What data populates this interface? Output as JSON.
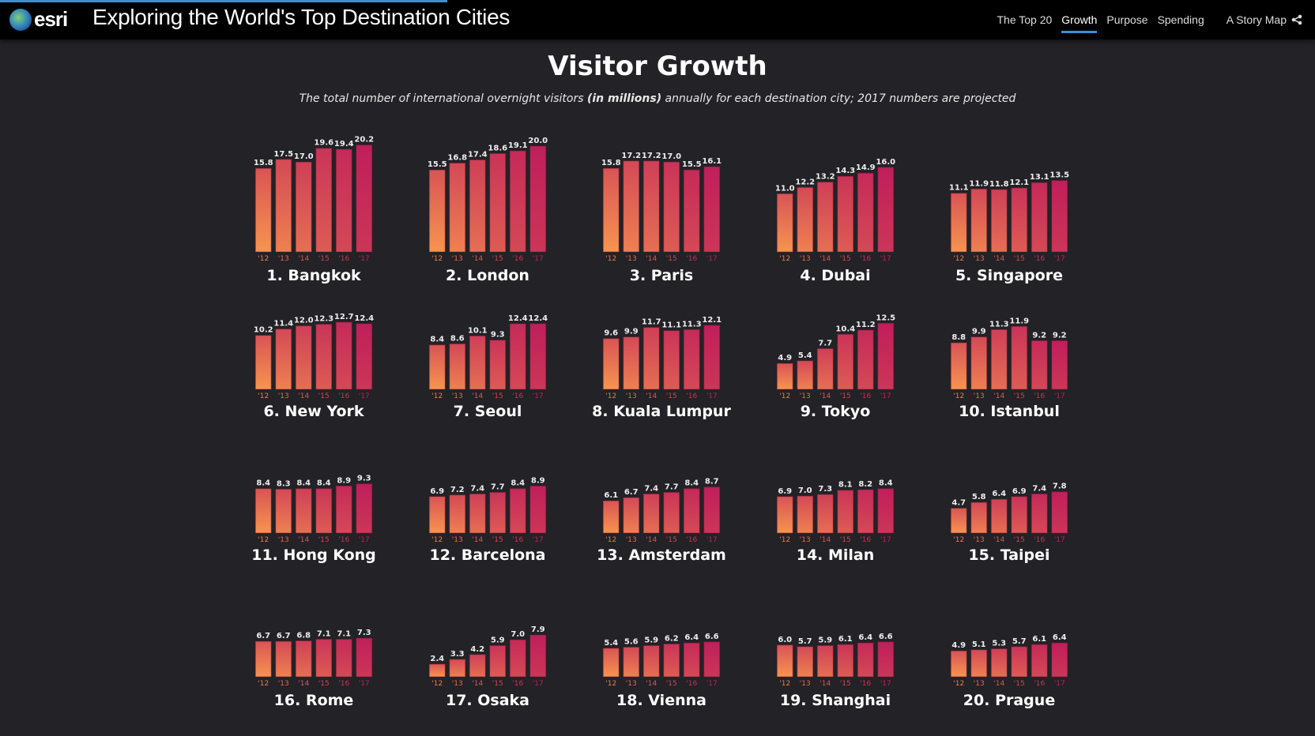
{
  "header": {
    "logo_text": "esri",
    "title": "Exploring the World's Top Destination Cities",
    "nav": [
      {
        "label": "The Top 20",
        "active": false
      },
      {
        "label": "Growth",
        "active": true
      },
      {
        "label": "Purpose",
        "active": false
      },
      {
        "label": "Spending",
        "active": false
      }
    ],
    "story_map_label": "A Story Map",
    "share_icon": "share-icon",
    "progress_percent": 34,
    "accent": "#3a8fd6"
  },
  "page": {
    "title": "Visitor Growth",
    "subtitle_pre": "The total number of international overnight visitors ",
    "subtitle_bold": "(in millions)",
    "subtitle_post": " annually for each destination city; 2017 numbers are projected"
  },
  "chart_data": {
    "type": "bar",
    "categories": [
      "'12",
      "'13",
      "'14",
      "'15",
      "'16",
      "'17"
    ],
    "colors": {
      "start": "#f7944f",
      "end": "#c01f5a"
    },
    "charts": [
      {
        "title": "1. Bangkok",
        "values": [
          15.8,
          17.5,
          17.0,
          19.6,
          19.4,
          20.2
        ]
      },
      {
        "title": "2. London",
        "values": [
          15.5,
          16.8,
          17.4,
          18.6,
          19.1,
          20.0
        ]
      },
      {
        "title": "3. Paris",
        "values": [
          15.8,
          17.2,
          17.2,
          17.0,
          15.5,
          16.1
        ]
      },
      {
        "title": "4. Dubai",
        "values": [
          11.0,
          12.2,
          13.2,
          14.3,
          14.9,
          16.0
        ]
      },
      {
        "title": "5. Singapore",
        "values": [
          11.1,
          11.9,
          11.8,
          12.1,
          13.1,
          13.5
        ]
      },
      {
        "title": "6. New York",
        "values": [
          10.2,
          11.4,
          12.0,
          12.3,
          12.7,
          12.4
        ]
      },
      {
        "title": "7. Seoul",
        "values": [
          8.4,
          8.6,
          10.1,
          9.3,
          12.4,
          12.4
        ]
      },
      {
        "title": "8. Kuala Lumpur",
        "values": [
          9.6,
          9.9,
          11.7,
          11.1,
          11.3,
          12.1
        ]
      },
      {
        "title": "9. Tokyo",
        "values": [
          4.9,
          5.4,
          7.7,
          10.4,
          11.2,
          12.5
        ]
      },
      {
        "title": "10. Istanbul",
        "values": [
          8.8,
          9.9,
          11.3,
          11.9,
          9.2,
          9.2
        ]
      },
      {
        "title": "11. Hong Kong",
        "values": [
          8.4,
          8.3,
          8.4,
          8.4,
          8.9,
          9.3
        ]
      },
      {
        "title": "12. Barcelona",
        "values": [
          6.9,
          7.2,
          7.4,
          7.7,
          8.4,
          8.9
        ]
      },
      {
        "title": "13. Amsterdam",
        "values": [
          6.1,
          6.7,
          7.4,
          7.7,
          8.4,
          8.7
        ]
      },
      {
        "title": "14. Milan",
        "values": [
          6.9,
          7.0,
          7.3,
          8.1,
          8.2,
          8.4
        ]
      },
      {
        "title": "15. Taipei",
        "values": [
          4.7,
          5.8,
          6.4,
          6.9,
          7.4,
          7.8
        ]
      },
      {
        "title": "16. Rome",
        "values": [
          6.7,
          6.7,
          6.8,
          7.1,
          7.1,
          7.3
        ]
      },
      {
        "title": "17. Osaka",
        "values": [
          2.4,
          3.3,
          4.2,
          5.9,
          7.0,
          7.9
        ]
      },
      {
        "title": "18. Vienna",
        "values": [
          5.4,
          5.6,
          5.9,
          6.2,
          6.4,
          6.6
        ]
      },
      {
        "title": "19. Shanghai",
        "values": [
          6.0,
          5.7,
          5.9,
          6.1,
          6.4,
          6.6
        ]
      },
      {
        "title": "20. Prague",
        "values": [
          4.9,
          5.1,
          5.3,
          5.7,
          6.1,
          6.4
        ]
      }
    ]
  }
}
